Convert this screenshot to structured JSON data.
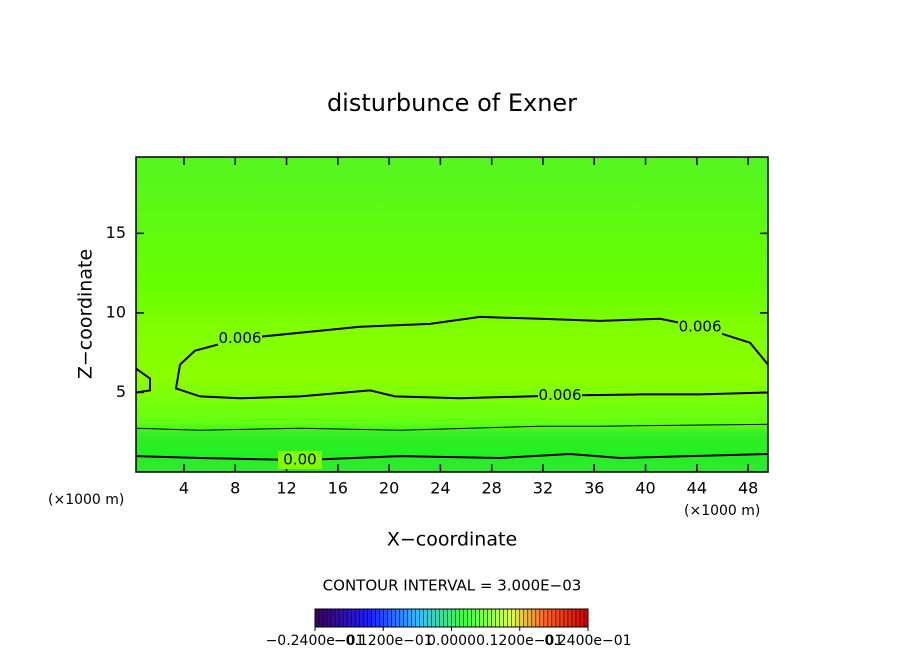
{
  "chart_data": {
    "type": "contour",
    "title": "disturbunce of Exner",
    "x_label": "X−coordinate",
    "y_label": "Z−coordinate",
    "x_unit": "(×1000 m)",
    "y_unit": "(×1000 m)",
    "xlim": [
      0.26,
      49.55
    ],
    "ylim": [
      0,
      19.8
    ],
    "xticks": [
      4,
      8,
      12,
      16,
      20,
      24,
      28,
      32,
      36,
      40,
      44,
      48
    ],
    "yticks": [
      5,
      10,
      15
    ],
    "contour_interval_text": "CONTOUR INTERVAL = 3.000E−03",
    "contours": [
      {
        "level": 0.006,
        "label": "0.006",
        "x": [
          49.55,
          44.25,
          39.57,
          33.33,
          25.53,
          20.46,
          18.51,
          13.05,
          8.37,
          5.25,
          3.38,
          3.69,
          4.86,
          8.37,
          17.73,
          23.19,
          27.09,
          31.77,
          36.45,
          41.13,
          44.25,
          48.15,
          49.55
        ],
        "y": [
          5.0,
          4.88,
          4.88,
          4.81,
          4.63,
          4.75,
          5.13,
          4.75,
          4.63,
          4.75,
          5.25,
          6.75,
          7.63,
          8.38,
          9.13,
          9.31,
          9.75,
          9.63,
          9.5,
          9.63,
          9.13,
          8.13,
          6.75
        ]
      },
      {
        "level": 0.006,
        "x": [
          0.26,
          1.35,
          1.35,
          0.26
        ],
        "y": [
          6.5,
          5.88,
          5.13,
          5.0
        ]
      },
      {
        "level": 0.003,
        "x": [
          0.26,
          5.25,
          13.05,
          20.85,
          31.77,
          36.45,
          49.55
        ],
        "y": [
          2.75,
          2.63,
          2.75,
          2.63,
          2.88,
          2.88,
          3.0
        ]
      },
      {
        "level": {
          "value": 0,
          "label": "0.00"
        },
        "x": [
          0.26,
          5.25,
          13.05,
          20.85,
          28.65,
          34.11,
          38.01,
          49.55
        ],
        "y": [
          1.0,
          0.88,
          0.75,
          1.0,
          0.88,
          1.13,
          0.88,
          1.13
        ]
      }
    ],
    "colorbar": {
      "lim": [
        -0.024,
        0.024
      ],
      "ticks": [
        {
          "value": -0.024,
          "label": "−0.2400e−01"
        },
        {
          "value": -0.012,
          "label": "−0.1200e−01"
        },
        {
          "value": 0,
          "label": "0.0000"
        },
        {
          "value": 0.012,
          "label": "0.1200e−01"
        },
        {
          "value": 0.024,
          "label": "0.2400e−01"
        }
      ]
    }
  }
}
